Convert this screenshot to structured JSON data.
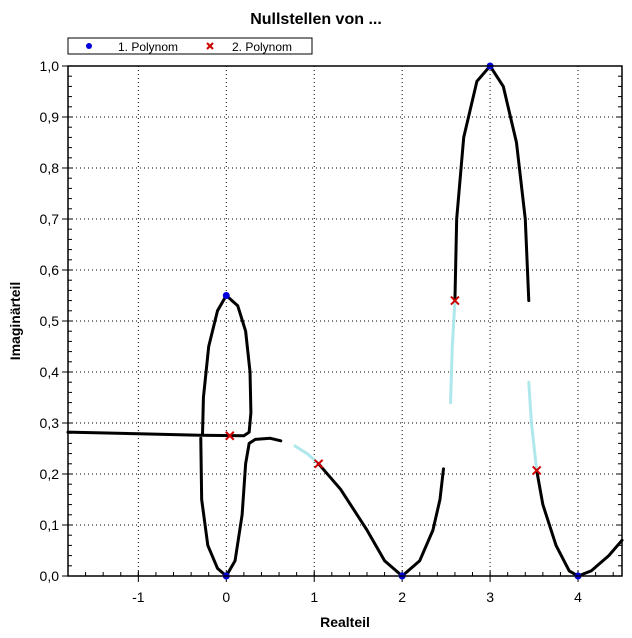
{
  "chart_data": {
    "type": "scatter",
    "title": "Nullstellen von ...",
    "xlabel": "Realteil",
    "ylabel": "Imaginärteil",
    "xlim": [
      -1.8,
      4.5
    ],
    "ylim": [
      0,
      1.0
    ],
    "grid": true,
    "legend_position": "top-left",
    "x_ticks": [
      -1,
      0,
      1,
      2,
      3,
      4
    ],
    "x_tick_labels": [
      "-1",
      "0",
      "1",
      "2",
      "3",
      "4"
    ],
    "y_ticks": [
      0,
      0.1,
      0.2,
      0.3,
      0.4,
      0.5,
      0.6,
      0.7,
      0.8,
      0.9,
      1.0
    ],
    "y_tick_labels": [
      "0,0",
      "0,1",
      "0,2",
      "0,3",
      "0,4",
      "0,5",
      "0,6",
      "0,7",
      "0,8",
      "0,9",
      "1,0"
    ],
    "series": [
      {
        "name": "1. Polynom",
        "marker": "dot",
        "color": "#0000dd",
        "points": [
          [
            0,
            0.55
          ],
          [
            0,
            0
          ],
          [
            2,
            0
          ],
          [
            3,
            1.0
          ],
          [
            4,
            0
          ]
        ]
      },
      {
        "name": "2. Polynom",
        "marker": "x",
        "color": "#cc0000",
        "points": [
          [
            0.04,
            0.275
          ],
          [
            1.05,
            0.22
          ],
          [
            2.6,
            0.54
          ],
          [
            3.53,
            0.207
          ]
        ]
      }
    ],
    "curves": [
      {
        "color": "#000000",
        "points": [
          [
            -1.8,
            0.282
          ],
          [
            -1,
            0.279
          ],
          [
            -0.3,
            0.276
          ],
          [
            0.2,
            0.275
          ],
          [
            0.26,
            0.282
          ],
          [
            0.28,
            0.32
          ],
          [
            0.27,
            0.4
          ],
          [
            0.22,
            0.48
          ],
          [
            0.13,
            0.53
          ],
          [
            0,
            0.55
          ],
          [
            -0.1,
            0.52
          ],
          [
            -0.2,
            0.45
          ],
          [
            -0.26,
            0.35
          ],
          [
            -0.27,
            0.28
          ]
        ]
      },
      {
        "color": "#000000",
        "points": [
          [
            -0.29,
            0.27
          ],
          [
            -0.28,
            0.15
          ],
          [
            -0.21,
            0.06
          ],
          [
            -0.1,
            0.015
          ],
          [
            0,
            0
          ],
          [
            0.1,
            0.03
          ],
          [
            0.18,
            0.12
          ],
          [
            0.22,
            0.22
          ],
          [
            0.26,
            0.26
          ],
          [
            0.33,
            0.268
          ],
          [
            0.5,
            0.27
          ],
          [
            0.62,
            0.265
          ]
        ]
      },
      {
        "color": "#aee8ec",
        "points": [
          [
            0.78,
            0.255
          ],
          [
            0.92,
            0.24
          ],
          [
            1.05,
            0.22
          ]
        ]
      },
      {
        "color": "#000000",
        "points": [
          [
            1.05,
            0.22
          ],
          [
            1.3,
            0.17
          ],
          [
            1.6,
            0.09
          ],
          [
            1.8,
            0.03
          ],
          [
            2,
            0
          ],
          [
            2.2,
            0.03
          ],
          [
            2.35,
            0.09
          ],
          [
            2.43,
            0.15
          ],
          [
            2.47,
            0.21
          ]
        ]
      },
      {
        "color": "#aee8ec",
        "points": [
          [
            2.55,
            0.34
          ],
          [
            2.57,
            0.45
          ],
          [
            2.6,
            0.54
          ]
        ]
      },
      {
        "color": "#000000",
        "points": [
          [
            2.6,
            0.54
          ],
          [
            2.62,
            0.7
          ],
          [
            2.7,
            0.86
          ],
          [
            2.85,
            0.97
          ],
          [
            3,
            1.0
          ],
          [
            3.15,
            0.96
          ],
          [
            3.3,
            0.85
          ],
          [
            3.4,
            0.7
          ],
          [
            3.44,
            0.54
          ]
        ]
      },
      {
        "color": "#aee8ec",
        "points": [
          [
            3.44,
            0.38
          ],
          [
            3.47,
            0.3
          ],
          [
            3.53,
            0.207
          ]
        ]
      },
      {
        "color": "#000000",
        "points": [
          [
            3.53,
            0.207
          ],
          [
            3.6,
            0.14
          ],
          [
            3.75,
            0.06
          ],
          [
            3.9,
            0.01
          ],
          [
            4,
            0
          ],
          [
            4.15,
            0.01
          ],
          [
            4.35,
            0.04
          ],
          [
            4.5,
            0.07
          ]
        ]
      }
    ]
  }
}
